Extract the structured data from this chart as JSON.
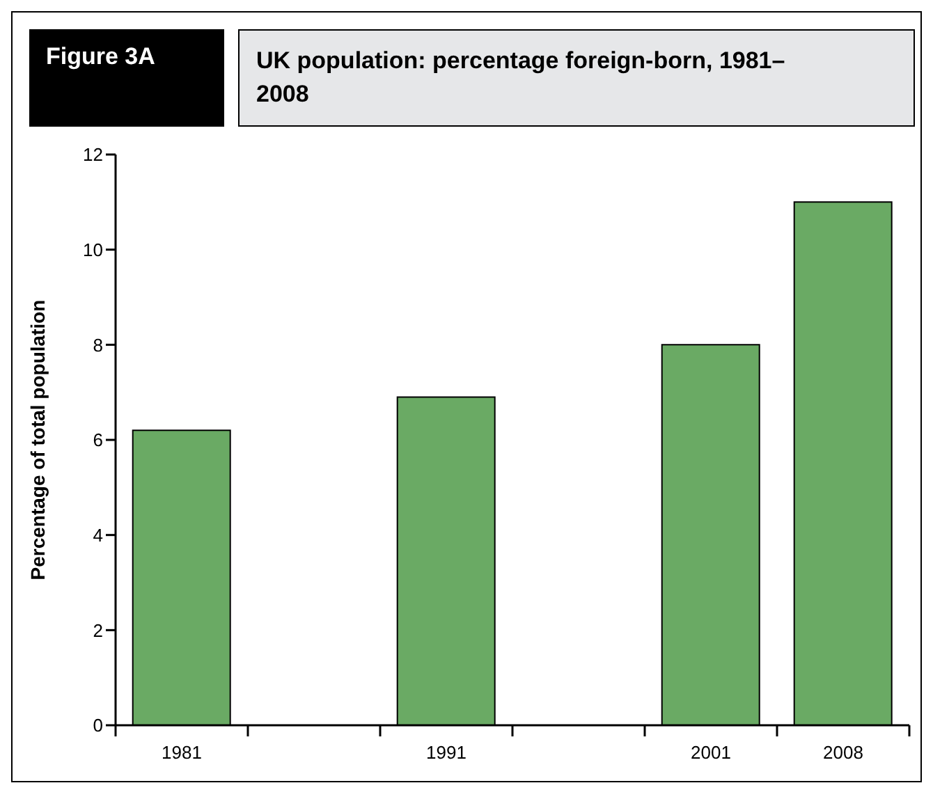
{
  "chart_data": {
    "type": "bar",
    "title": "UK population: percentage foreign-born, 1981–2008",
    "annotations": [
      "Figure 3A"
    ],
    "ylabel": "Percentage of total population",
    "categories": [
      "1981",
      null,
      "1991",
      null,
      "2001",
      "2008"
    ],
    "values": [
      6.2,
      null,
      6.9,
      null,
      8.0,
      11.0
    ],
    "color": "#6aaa64",
    "ylim": [
      0,
      12
    ],
    "yticks": [
      0,
      2,
      4,
      6,
      8,
      10,
      12
    ],
    "grid": false
  }
}
